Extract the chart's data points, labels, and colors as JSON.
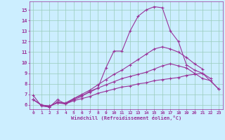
{
  "bg_color": "#cceeff",
  "grid_color": "#99ccbb",
  "line_color": "#993399",
  "xlabel": "Windchill (Refroidissement éolien,°C)",
  "x_ticks": [
    0,
    1,
    2,
    3,
    4,
    5,
    6,
    7,
    8,
    9,
    10,
    11,
    12,
    13,
    14,
    15,
    16,
    17,
    18,
    19,
    20,
    21,
    22,
    23
  ],
  "y_ticks": [
    6,
    7,
    8,
    9,
    10,
    11,
    12,
    13,
    14,
    15
  ],
  "xlim": [
    -0.5,
    23.5
  ],
  "ylim": [
    5.6,
    15.8
  ],
  "lines": [
    {
      "x": [
        0,
        1,
        2,
        3,
        4,
        5,
        6,
        7,
        8,
        9,
        10,
        11,
        12,
        13,
        14,
        15,
        16,
        17,
        18,
        19,
        20,
        21,
        22
      ],
      "y": [
        6.9,
        5.9,
        5.8,
        6.5,
        6.1,
        6.5,
        6.8,
        7.3,
        7.6,
        9.5,
        11.1,
        11.1,
        13.0,
        14.4,
        15.0,
        15.3,
        15.2,
        13.0,
        12.0,
        9.8,
        9.3,
        9.0,
        8.5
      ]
    },
    {
      "x": [
        0,
        1,
        2,
        3,
        4,
        5,
        6,
        7,
        8,
        9,
        10,
        11,
        12,
        13,
        14,
        15,
        16,
        17,
        18,
        19,
        20,
        21
      ],
      "y": [
        6.5,
        6.0,
        5.8,
        6.3,
        6.1,
        6.6,
        7.0,
        7.4,
        7.9,
        8.4,
        8.9,
        9.3,
        9.8,
        10.3,
        10.8,
        11.3,
        11.5,
        11.3,
        11.0,
        10.5,
        9.9,
        9.4
      ]
    },
    {
      "x": [
        0,
        1,
        2,
        3,
        4,
        5,
        6,
        7,
        8,
        9,
        10,
        11,
        12,
        13,
        14,
        15,
        16,
        17,
        18,
        19,
        20,
        21,
        22,
        23
      ],
      "y": [
        6.5,
        6.0,
        5.9,
        6.2,
        6.2,
        6.6,
        6.9,
        7.2,
        7.6,
        7.9,
        8.2,
        8.5,
        8.7,
        8.9,
        9.1,
        9.4,
        9.7,
        9.9,
        9.7,
        9.5,
        9.0,
        8.5,
        8.3,
        7.5
      ]
    },
    {
      "x": [
        0,
        1,
        2,
        3,
        4,
        5,
        6,
        7,
        8,
        9,
        10,
        11,
        12,
        13,
        14,
        15,
        16,
        17,
        18,
        19,
        20,
        21,
        23
      ],
      "y": [
        6.5,
        6.0,
        5.9,
        6.2,
        6.1,
        6.4,
        6.6,
        6.8,
        7.1,
        7.3,
        7.5,
        7.7,
        7.8,
        8.0,
        8.1,
        8.3,
        8.4,
        8.5,
        8.6,
        8.8,
        8.9,
        9.0,
        7.5
      ]
    }
  ]
}
